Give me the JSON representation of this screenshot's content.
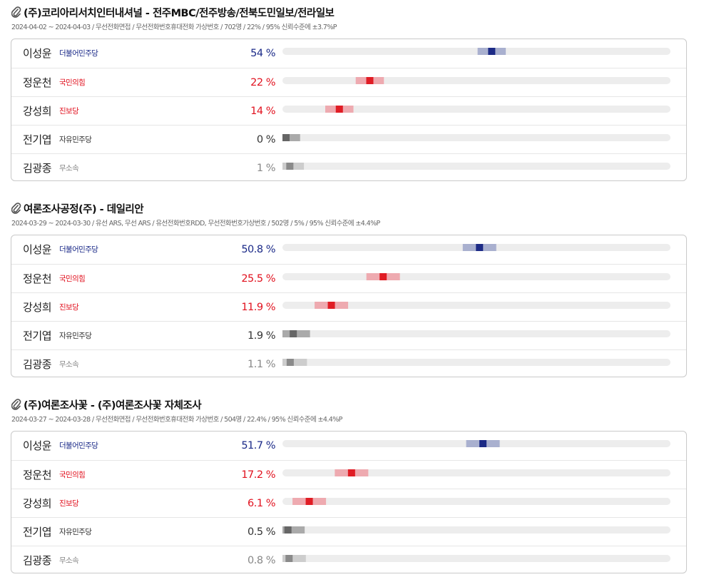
{
  "colors": {
    "더불어민주당": {
      "text": "#1b2a88",
      "dot": "#1c2a86",
      "band": "#a9b0cf"
    },
    "국민의힘": {
      "text": "#e1121f",
      "dot": "#e01c24",
      "band": "#eeaab0"
    },
    "진보당": {
      "text": "#e1121f",
      "dot": "#e01c24",
      "band": "#eeaab0"
    },
    "자유민주당": {
      "text": "#333333",
      "dot": "#666666",
      "band": "#aaaaaa"
    },
    "무소속": {
      "text": "#888888",
      "dot": "#8a8a8a",
      "band": "#cdcdcd"
    },
    "track": "#ededed"
  },
  "chart_data": [
    {
      "type": "bar",
      "title": "(주)코리아리서치인터내셔널 - 전주MBC/전주방송/전북도민일보/전라일보",
      "subtitle": "2024-04-02 ~ 2024-04-03 / 무선전화면접 / 무선전화번호휴대전화 가상번호 / 702명 / 22% / 95% 신뢰수준에 ±3.7%P",
      "margin": 3.7,
      "xlim": [
        0,
        100
      ],
      "rows": [
        {
          "name": "이성윤",
          "party": "더불어민주당",
          "value": 54,
          "label": "54 %"
        },
        {
          "name": "정운천",
          "party": "국민의힘",
          "value": 22,
          "label": "22 %"
        },
        {
          "name": "강성희",
          "party": "진보당",
          "value": 14,
          "label": "14 %"
        },
        {
          "name": "전기엽",
          "party": "자유민주당",
          "value": 0,
          "label": "0 %"
        },
        {
          "name": "김광종",
          "party": "무소속",
          "value": 1,
          "label": "1 %"
        }
      ]
    },
    {
      "type": "bar",
      "title": "여론조사공정(주) - 데일리안",
      "subtitle": "2024-03-29 ~ 2024-03-30 / 유선 ARS, 무선 ARS / 유선전화번호RDD, 무선전화번호가상번호 / 502명 / 5% / 95% 신뢰수준에 ±4.4%P",
      "margin": 4.4,
      "xlim": [
        0,
        100
      ],
      "rows": [
        {
          "name": "이성윤",
          "party": "더불어민주당",
          "value": 50.8,
          "label": "50.8 %"
        },
        {
          "name": "정운천",
          "party": "국민의힘",
          "value": 25.5,
          "label": "25.5 %"
        },
        {
          "name": "강성희",
          "party": "진보당",
          "value": 11.9,
          "label": "11.9 %"
        },
        {
          "name": "전기엽",
          "party": "자유민주당",
          "value": 1.9,
          "label": "1.9 %"
        },
        {
          "name": "김광종",
          "party": "무소속",
          "value": 1.1,
          "label": "1.1 %"
        }
      ]
    },
    {
      "type": "bar",
      "title": "(주)여론조사꽃 - (주)여론조사꽃 자체조사",
      "subtitle": "2024-03-27 ~ 2024-03-28 / 무선전화면접 / 무선전화번호휴대전화 가상번호 / 504명 / 22.4% / 95% 신뢰수준에 ±4.4%P",
      "margin": 4.4,
      "xlim": [
        0,
        100
      ],
      "rows": [
        {
          "name": "이성윤",
          "party": "더불어민주당",
          "value": 51.7,
          "label": "51.7 %"
        },
        {
          "name": "정운천",
          "party": "국민의힘",
          "value": 17.2,
          "label": "17.2 %"
        },
        {
          "name": "강성희",
          "party": "진보당",
          "value": 6.1,
          "label": "6.1 %"
        },
        {
          "name": "전기엽",
          "party": "자유민주당",
          "value": 0.5,
          "label": "0.5 %"
        },
        {
          "name": "김광종",
          "party": "무소속",
          "value": 0.8,
          "label": "0.8 %"
        }
      ]
    }
  ]
}
